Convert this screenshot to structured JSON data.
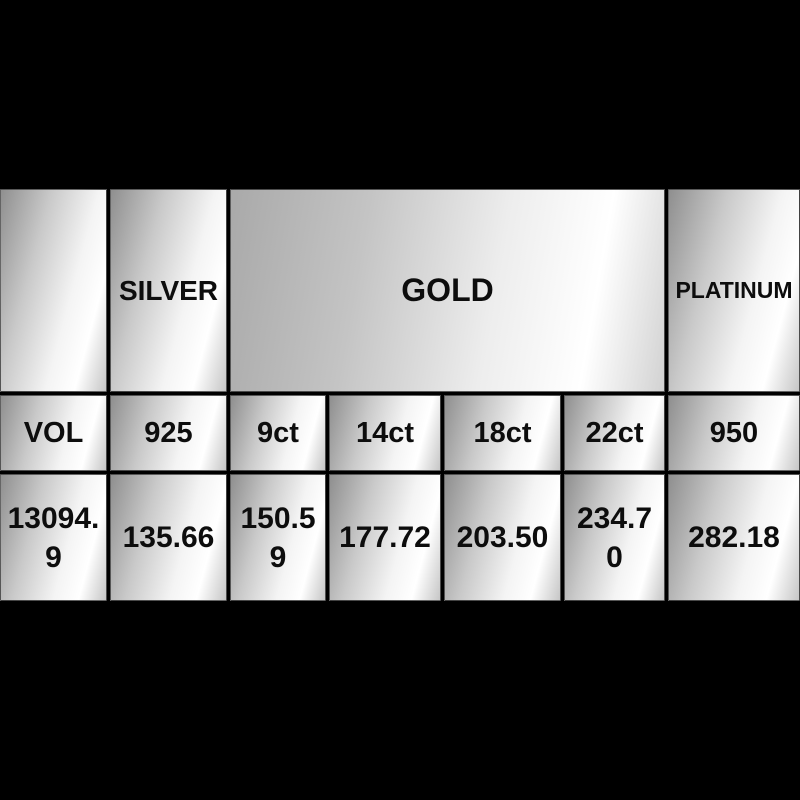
{
  "colors": {
    "background": "#000000",
    "cell_text": "#0d0d0d",
    "metal_gradient_dark": "#8f8f8f",
    "metal_gradient_light": "#ffffff"
  },
  "table": {
    "header": {
      "blank": "",
      "silver": "SILVER",
      "gold": "GOLD",
      "platinum": "PLATINUM"
    },
    "columns": [
      "VOL",
      "925",
      "9ct",
      "14ct",
      "18ct",
      "22ct",
      "950"
    ],
    "values_display": [
      "13094.\n9",
      "135.66",
      "150.5\n9",
      "177.72",
      "203.50",
      "234.7\n0",
      "282.18"
    ]
  },
  "chart_data": {
    "type": "table",
    "title": "",
    "column_groups": [
      {
        "label": "",
        "span": 1
      },
      {
        "label": "SILVER",
        "span": 1
      },
      {
        "label": "GOLD",
        "span": 4
      },
      {
        "label": "PLATINUM",
        "span": 1
      }
    ],
    "columns": [
      "VOL",
      "925",
      "9ct",
      "14ct",
      "18ct",
      "22ct",
      "950"
    ],
    "rows": [
      [
        "13094.9",
        "135.66",
        "150.59",
        "177.72",
        "203.50",
        "234.70",
        "282.18"
      ]
    ]
  }
}
